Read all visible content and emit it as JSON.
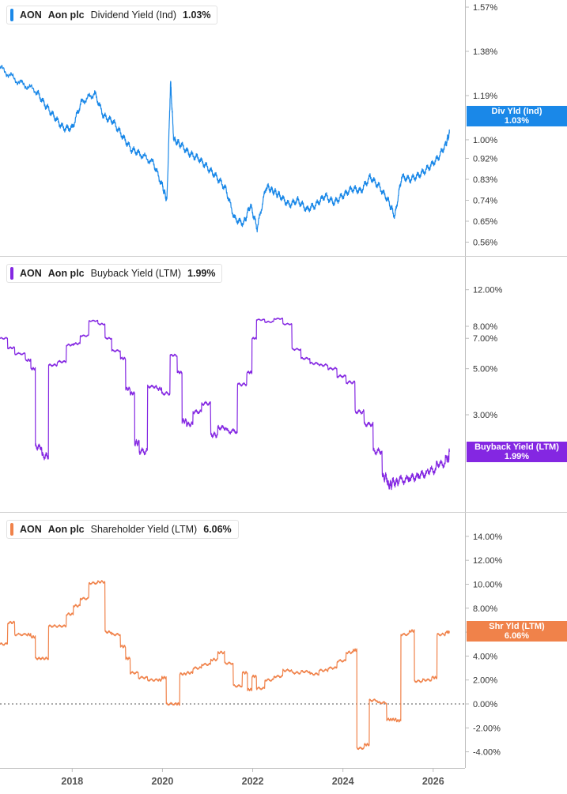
{
  "legends": [
    {
      "ticker": "AON",
      "name": "Aon plc",
      "metric": "Dividend Yield (Ind)",
      "value": "1.03%"
    },
    {
      "ticker": "AON",
      "name": "Aon plc",
      "metric": "Buyback Yield (LTM)",
      "value": "1.99%"
    },
    {
      "ticker": "AON",
      "name": "Aon plc",
      "metric": "Shareholder Yield (LTM)",
      "value": "6.06%"
    }
  ],
  "tags": [
    {
      "label": "Div Yld (Ind)",
      "value": "1.03%"
    },
    {
      "label": "Buyback Yield (LTM)",
      "value": "1.99%"
    },
    {
      "label": "Shr Yld (LTM)",
      "value": "6.06%"
    }
  ],
  "chart_data": [
    {
      "type": "line",
      "series": [
        {
          "name": "Dividend Yield (Ind)",
          "color": "#1a88e8",
          "x": [
            2016.4,
            2016.8,
            2017.2,
            2017.4,
            2017.6,
            2017.8,
            2018.0,
            2018.2,
            2018.5,
            2018.7,
            2018.9,
            2019.1,
            2019.3,
            2019.5,
            2019.8,
            2020.0,
            2020.1,
            2020.18,
            2020.25,
            2020.4,
            2020.6,
            2020.8,
            2021.0,
            2021.2,
            2021.4,
            2021.6,
            2021.8,
            2021.95,
            2022.1,
            2022.3,
            2022.45,
            2022.6,
            2022.8,
            2023.0,
            2023.2,
            2023.4,
            2023.6,
            2023.8,
            2024.0,
            2024.2,
            2024.4,
            2024.6,
            2024.8,
            2025.0,
            2025.15,
            2025.3,
            2025.5,
            2025.7,
            2025.9,
            2026.1,
            2026.28,
            2026.36
          ],
          "y": [
            1.31,
            1.25,
            1.21,
            1.15,
            1.1,
            1.05,
            1.05,
            1.16,
            1.2,
            1.1,
            1.08,
            1.02,
            0.96,
            0.94,
            0.9,
            0.8,
            0.74,
            1.25,
            1.0,
            0.98,
            0.94,
            0.92,
            0.88,
            0.84,
            0.79,
            0.66,
            0.64,
            0.72,
            0.62,
            0.8,
            0.78,
            0.76,
            0.72,
            0.74,
            0.7,
            0.72,
            0.76,
            0.73,
            0.76,
            0.79,
            0.78,
            0.84,
            0.8,
            0.74,
            0.67,
            0.84,
            0.83,
            0.85,
            0.88,
            0.92,
            0.98,
            1.03
          ]
        }
      ],
      "y_ticks": [
        "1.57%",
        "1.38%",
        "1.19%",
        "1.00%",
        "0.92%",
        "0.83%",
        "0.74%",
        "0.65%",
        "0.56%"
      ],
      "y_tick_values": [
        1.57,
        1.38,
        1.19,
        1.0,
        0.92,
        0.83,
        0.74,
        0.65,
        0.56
      ]
    },
    {
      "type": "line",
      "series": [
        {
          "name": "Buyback Yield (LTM)",
          "color": "#8427e2",
          "x": [
            2016.4,
            2016.6,
            2016.75,
            2017.0,
            2017.1,
            2017.2,
            2017.35,
            2017.5,
            2017.7,
            2017.9,
            2018.05,
            2018.2,
            2018.4,
            2018.6,
            2018.75,
            2018.9,
            2019.1,
            2019.2,
            2019.3,
            2019.4,
            2019.5,
            2019.7,
            2019.9,
            2020.0,
            2020.2,
            2020.35,
            2020.45,
            2020.55,
            2020.7,
            2020.9,
            2021.1,
            2021.25,
            2021.45,
            2021.7,
            2021.9,
            2022.0,
            2022.1,
            2022.3,
            2022.5,
            2022.7,
            2022.9,
            2023.1,
            2023.3,
            2023.5,
            2023.7,
            2023.9,
            2024.1,
            2024.3,
            2024.5,
            2024.7,
            2024.9,
            2025.0,
            2025.1,
            2025.25,
            2025.5,
            2025.7,
            2025.9,
            2026.1,
            2026.3,
            2026.36
          ],
          "y": [
            7.0,
            6.3,
            5.9,
            5.5,
            5.0,
            2.1,
            1.9,
            5.2,
            5.4,
            6.5,
            6.6,
            7.2,
            8.5,
            8.2,
            7.0,
            6.1,
            5.6,
            4.0,
            3.8,
            2.2,
            2.0,
            4.1,
            4.0,
            3.8,
            5.8,
            4.8,
            2.8,
            2.7,
            3.1,
            3.4,
            2.4,
            2.6,
            2.5,
            4.2,
            4.8,
            7.0,
            8.6,
            8.4,
            8.7,
            8.2,
            6.2,
            5.6,
            5.3,
            5.2,
            5.0,
            4.6,
            4.3,
            3.1,
            2.7,
            2.0,
            1.5,
            1.38,
            1.42,
            1.46,
            1.5,
            1.55,
            1.62,
            1.74,
            1.84,
            1.99
          ]
        }
      ],
      "y_ticks": [
        "12.00%",
        "8.00%",
        "7.00%",
        "5.00%",
        "3.00%"
      ],
      "y_tick_values": [
        12,
        8,
        7,
        5,
        3
      ]
    },
    {
      "type": "line",
      "series": [
        {
          "name": "Shareholder Yield (LTM)",
          "color": "#f0824a",
          "x": [
            2016.4,
            2016.6,
            2016.75,
            2017.0,
            2017.1,
            2017.2,
            2017.35,
            2017.5,
            2017.7,
            2017.9,
            2018.05,
            2018.2,
            2018.4,
            2018.6,
            2018.75,
            2018.9,
            2019.1,
            2019.2,
            2019.3,
            2019.5,
            2019.7,
            2019.9,
            2020.0,
            2020.1,
            2020.3,
            2020.4,
            2020.55,
            2020.7,
            2020.9,
            2021.1,
            2021.25,
            2021.4,
            2021.6,
            2021.8,
            2021.9,
            2022.0,
            2022.1,
            2022.3,
            2022.5,
            2022.7,
            2022.9,
            2023.1,
            2023.3,
            2023.5,
            2023.7,
            2023.9,
            2024.1,
            2024.25,
            2024.32,
            2024.5,
            2024.6,
            2024.8,
            2025.0,
            2025.1,
            2025.2,
            2025.3,
            2025.5,
            2025.6,
            2025.8,
            2026.0,
            2026.1,
            2026.3,
            2026.36
          ],
          "y": [
            5.0,
            6.8,
            5.8,
            5.8,
            5.6,
            3.8,
            3.8,
            6.5,
            6.5,
            7.5,
            8.2,
            8.8,
            10.1,
            10.2,
            6.0,
            5.8,
            4.8,
            3.8,
            2.6,
            2.2,
            2.0,
            2.0,
            2.2,
            0.0,
            0.0,
            2.5,
            2.6,
            3.0,
            3.3,
            3.7,
            4.3,
            3.4,
            1.5,
            2.6,
            1.2,
            2.3,
            1.3,
            2.0,
            2.3,
            2.8,
            2.6,
            2.7,
            2.5,
            2.8,
            3.0,
            3.6,
            4.3,
            4.5,
            -3.7,
            -3.4,
            0.3,
            0.1,
            -1.3,
            -1.3,
            -1.4,
            5.8,
            6.1,
            1.9,
            2.0,
            2.2,
            5.8,
            6.0,
            6.06
          ]
        }
      ],
      "y_ticks": [
        "14.00%",
        "12.00%",
        "10.00%",
        "8.00%",
        "6.00%",
        "4.00%",
        "2.00%",
        "0.00%",
        "-2.00%",
        "-4.00%"
      ],
      "y_tick_values": [
        14,
        12,
        10,
        8,
        6,
        4,
        2,
        0,
        -2,
        -4
      ]
    }
  ],
  "x_axis": {
    "ticks": [
      "2018",
      "2020",
      "2022",
      "2024",
      "2026"
    ],
    "tick_values": [
      2018,
      2020,
      2022,
      2024,
      2026
    ],
    "range": [
      2016.4,
      2026.4
    ]
  },
  "colors": {
    "dividend": "#1a88e8",
    "buyback": "#8427e2",
    "shareholder": "#f0824a"
  }
}
